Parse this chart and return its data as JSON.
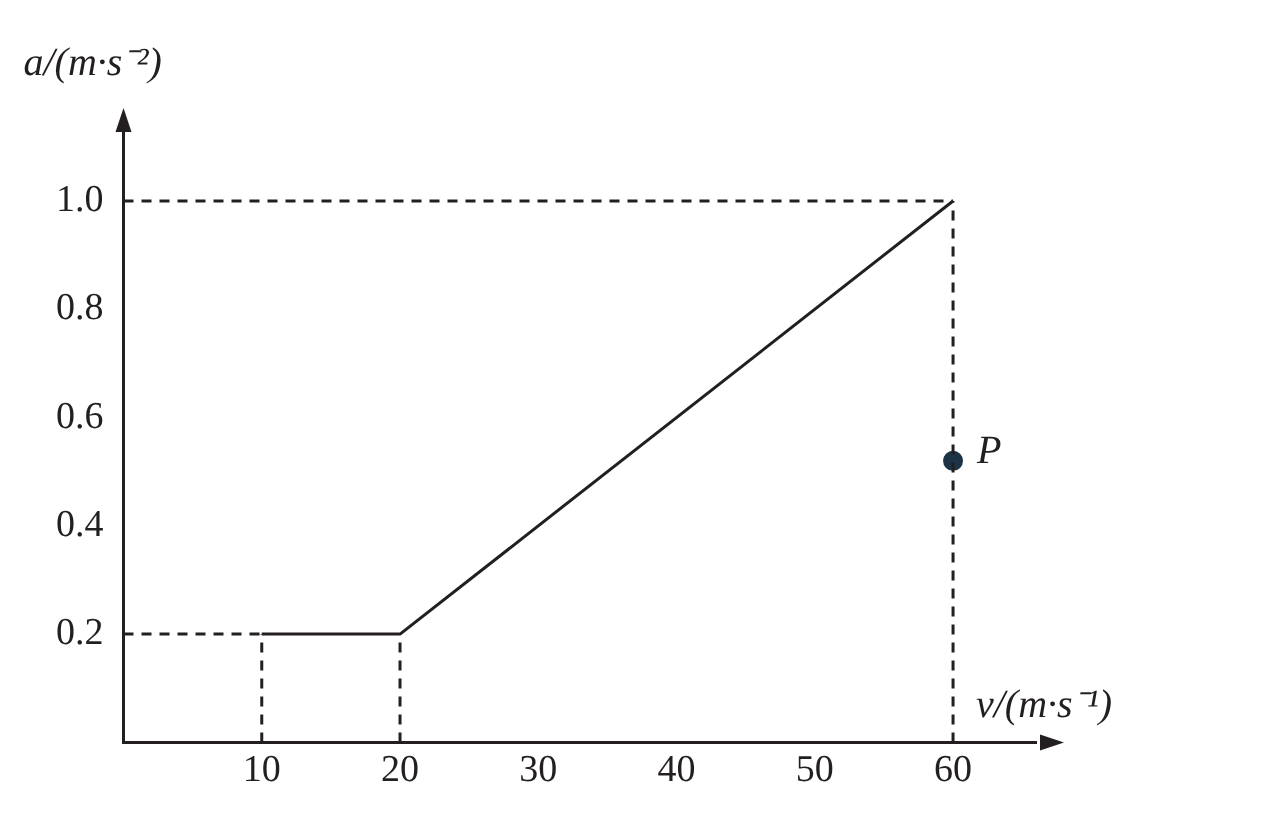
{
  "chart_data": {
    "type": "line",
    "xlabel": "v/(m·s⁻¹)",
    "ylabel": "a/(m·s⁻²)",
    "xlim": [
      0,
      66
    ],
    "ylim": [
      0,
      1.12
    ],
    "xticks": [
      10,
      20,
      30,
      40,
      50,
      60
    ],
    "yticks": [
      0.2,
      0.4,
      0.6,
      {
        "value": 1,
        "label": "1.0"
      },
      0.8
    ],
    "grid": false,
    "legend": false,
    "series": [
      {
        "color": "#231f20",
        "x": [
          10,
          20,
          60
        ],
        "values": [
          0.2,
          0.2,
          1.0
        ],
        "line_style": "solid"
      },
      {
        "type": "line",
        "color": "#231f20",
        "x": [
          0,
          60
        ],
        "values": [
          1.0,
          1.0
        ],
        "line_style": "dashed"
      },
      {
        "type": "line",
        "color": "#231f20",
        "x": [
          60,
          60
        ],
        "values": [
          0,
          1.0
        ],
        "line_style": "dashed"
      },
      {
        "type": "line",
        "color": "#231f20",
        "x": [
          0,
          10
        ],
        "values": [
          0.2,
          0.2
        ],
        "line_style": "dashed"
      },
      {
        "type": "line",
        "color": "#231f20",
        "x": [
          10,
          10
        ],
        "values": [
          0,
          0.2
        ],
        "line_style": "dashed"
      },
      {
        "type": "line",
        "color": "#231f20",
        "x": [
          20,
          20
        ],
        "values": [
          0,
          0.2
        ],
        "line_style": "dashed"
      },
      {
        "type": "scatter",
        "color": "#1d3346",
        "x": [
          60
        ],
        "values": [
          0.52
        ],
        "marker": "circle"
      }
    ],
    "annotations": [
      {
        "text": "P",
        "x": 60,
        "y": 0.52
      }
    ]
  }
}
